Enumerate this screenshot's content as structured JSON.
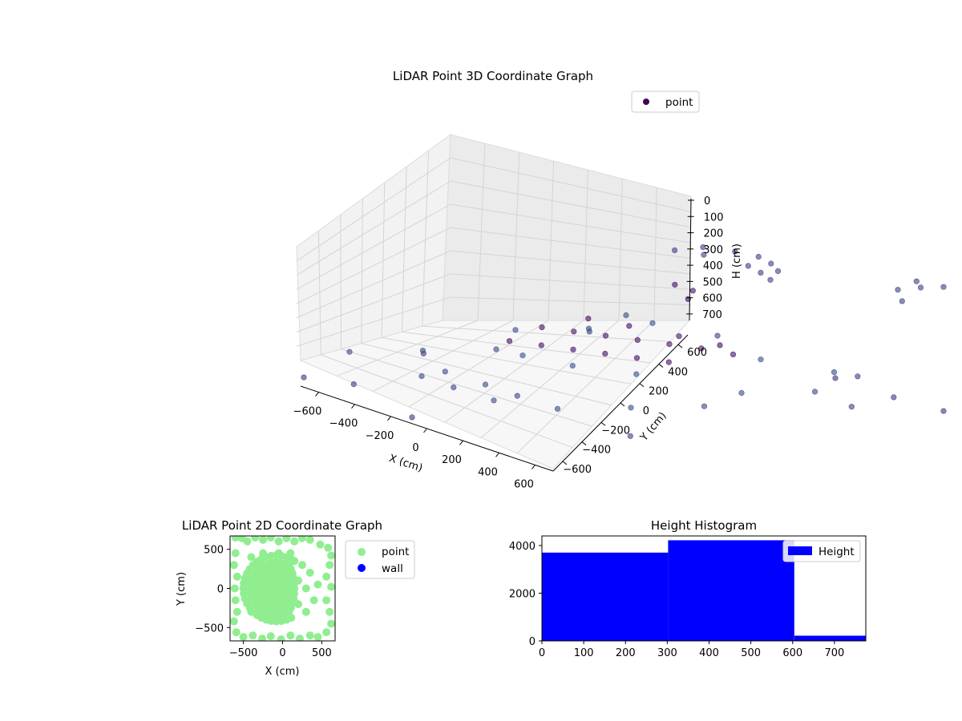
{
  "figure": {
    "panels": [
      "lidar-3d",
      "lidar-2d",
      "height-histogram"
    ]
  },
  "chart_data": [
    {
      "id": "lidar-3d",
      "type": "scatter",
      "projection": "3d",
      "title": "LiDAR Point 3D Coordinate Graph",
      "xlabel": "X (cm)",
      "ylabel": "Y (cm)",
      "zlabel": "H (cm)",
      "xlim": [
        -700,
        700
      ],
      "ylim": [
        -700,
        700
      ],
      "zlim": [
        0,
        770
      ],
      "x_ticks": [
        "−600",
        "−400",
        "−200",
        "0",
        "200",
        "400",
        "600"
      ],
      "y_ticks": [
        "−600",
        "−400",
        "−200",
        "0",
        "200",
        "400",
        "600"
      ],
      "z_ticks": [
        "0",
        "100",
        "200",
        "300",
        "400",
        "500",
        "600",
        "700"
      ],
      "z_inverted": true,
      "colormap": "viridis",
      "grid": true,
      "legend": {
        "placement": "upper right",
        "entries": [
          {
            "label": "point",
            "color": "#440154"
          }
        ]
      },
      "series": [
        {
          "name": "point",
          "note_points": "approximate sample of the dense point cloud",
          "points": [
            {
              "x": -250,
              "y": 450,
              "z": 60
            },
            {
              "x": -150,
              "y": 500,
              "z": 60
            },
            {
              "x": -50,
              "y": 520,
              "z": 60
            },
            {
              "x": 50,
              "y": 500,
              "z": 60
            },
            {
              "x": 150,
              "y": 460,
              "z": 60
            },
            {
              "x": -300,
              "y": 380,
              "z": 80
            },
            {
              "x": -200,
              "y": 420,
              "z": 80
            },
            {
              "x": 0,
              "y": 450,
              "z": 80
            },
            {
              "x": 100,
              "y": 430,
              "z": 80
            },
            {
              "x": 200,
              "y": 400,
              "z": 80
            },
            {
              "x": -100,
              "y": 250,
              "z": 180
            },
            {
              "x": 0,
              "y": 250,
              "z": 180
            },
            {
              "x": 50,
              "y": 200,
              "z": 200
            },
            {
              "x": -300,
              "y": -100,
              "z": 420
            },
            {
              "x": -200,
              "y": -50,
              "z": 420
            },
            {
              "x": -100,
              "y": 0,
              "z": 420
            },
            {
              "x": 0,
              "y": 50,
              "z": 420
            },
            {
              "x": 100,
              "y": 100,
              "z": 420
            },
            {
              "x": 200,
              "y": 150,
              "z": 420
            },
            {
              "x": 300,
              "y": 200,
              "z": 430
            },
            {
              "x": -250,
              "y": -250,
              "z": 450
            },
            {
              "x": -150,
              "y": -200,
              "z": 450
            },
            {
              "x": -50,
              "y": -150,
              "z": 450
            },
            {
              "x": 50,
              "y": -100,
              "z": 450
            },
            {
              "x": 150,
              "y": -50,
              "z": 450
            },
            {
              "x": 250,
              "y": 0,
              "z": 450
            },
            {
              "x": -350,
              "y": 100,
              "z": 430
            },
            {
              "x": -200,
              "y": 150,
              "z": 430
            },
            {
              "x": 0,
              "y": 200,
              "z": 430
            },
            {
              "x": 150,
              "y": 250,
              "z": 440
            },
            {
              "x": -100,
              "y": -300,
              "z": 470
            },
            {
              "x": 100,
              "y": -250,
              "z": 470
            },
            {
              "x": 300,
              "y": -150,
              "z": 470
            },
            {
              "x": -300,
              "y": 300,
              "z": 480
            },
            {
              "x": 300,
              "y": 300,
              "z": 480
            },
            {
              "x": -600,
              "y": -600,
              "z": 560
            },
            {
              "x": -500,
              "y": -400,
              "z": 560
            },
            {
              "x": -400,
              "y": -200,
              "z": 560
            },
            {
              "x": -600,
              "y": 0,
              "z": 560
            },
            {
              "x": -500,
              "y": 200,
              "z": 560
            },
            {
              "x": -600,
              "y": 400,
              "z": 560
            },
            {
              "x": 400,
              "y": -500,
              "z": 560
            },
            {
              "x": 500,
              "y": -300,
              "z": 560
            },
            {
              "x": 600,
              "y": -100,
              "z": 560
            },
            {
              "x": 500,
              "y": 100,
              "z": 560
            },
            {
              "x": 600,
              "y": 300,
              "z": 560
            },
            {
              "x": 400,
              "y": 500,
              "z": 560
            },
            {
              "x": -200,
              "y": -600,
              "z": 560
            },
            {
              "x": 0,
              "y": -500,
              "z": 560
            },
            {
              "x": 200,
              "y": -600,
              "z": 560
            },
            {
              "x": -300,
              "y": -450,
              "z": 600
            },
            {
              "x": -100,
              "y": -550,
              "z": 600
            },
            {
              "x": 100,
              "y": -450,
              "z": 600
            },
            {
              "x": -650,
              "y": -300,
              "z": 650
            },
            {
              "x": -650,
              "y": 300,
              "z": 650
            },
            {
              "x": 650,
              "y": -400,
              "z": 650
            },
            {
              "x": 650,
              "y": 400,
              "z": 650
            },
            {
              "x": -400,
              "y": 600,
              "z": 650
            },
            {
              "x": 300,
              "y": 650,
              "z": 650
            },
            {
              "x": -500,
              "y": -650,
              "z": 700
            },
            {
              "x": 500,
              "y": 650,
              "z": 700
            },
            {
              "x": -700,
              "y": -700,
              "z": 720
            },
            {
              "x": 700,
              "y": 700,
              "z": 720
            },
            {
              "x": -100,
              "y": -700,
              "z": 740
            },
            {
              "x": 100,
              "y": 700,
              "z": 740
            },
            {
              "x": 650,
              "y": 650,
              "z": 20
            },
            {
              "x": 600,
              "y": 600,
              "z": 40
            },
            {
              "x": 700,
              "y": 550,
              "z": 60
            },
            {
              "x": 550,
              "y": 700,
              "z": 30
            },
            {
              "x": 700,
              "y": 700,
              "z": 10
            }
          ]
        }
      ]
    },
    {
      "id": "lidar-2d",
      "type": "scatter",
      "title": "LiDAR Point 2D Coordinate Graph",
      "xlabel": "X (cm)",
      "ylabel": "Y (cm)",
      "xlim": [
        -670,
        670
      ],
      "ylim": [
        -670,
        670
      ],
      "x_ticks": [
        -500,
        0,
        500
      ],
      "y_ticks": [
        -500,
        0,
        500
      ],
      "legend": {
        "placement": "outside right",
        "entries": [
          {
            "label": "point",
            "color": "#90ee90"
          },
          {
            "label": "wall",
            "color": "#0000ff"
          }
        ]
      },
      "series": [
        {
          "name": "point",
          "color": "#90ee90",
          "note_points": "approximate sample of the dense point cloud",
          "points": [
            [
              -600,
              650
            ],
            [
              -520,
              640
            ],
            [
              -450,
              600
            ],
            [
              -350,
              650
            ],
            [
              -250,
              620
            ],
            [
              -150,
              650
            ],
            [
              -50,
              600
            ],
            [
              50,
              640
            ],
            [
              150,
              600
            ],
            [
              250,
              640
            ],
            [
              350,
              620
            ],
            [
              480,
              560
            ],
            [
              580,
              520
            ],
            [
              620,
              420
            ],
            [
              600,
              300
            ],
            [
              560,
              150
            ],
            [
              620,
              20
            ],
            [
              560,
              -150
            ],
            [
              600,
              -300
            ],
            [
              620,
              -450
            ],
            [
              560,
              -560
            ],
            [
              450,
              -620
            ],
            [
              350,
              -600
            ],
            [
              220,
              -640
            ],
            [
              100,
              -600
            ],
            [
              -20,
              -650
            ],
            [
              -150,
              -610
            ],
            [
              -260,
              -640
            ],
            [
              -380,
              -600
            ],
            [
              -500,
              -620
            ],
            [
              -590,
              -560
            ],
            [
              -620,
              -420
            ],
            [
              -580,
              -300
            ],
            [
              -600,
              -150
            ],
            [
              -610,
              0
            ],
            [
              -580,
              150
            ],
            [
              -620,
              300
            ],
            [
              -600,
              450
            ],
            [
              -400,
              400
            ],
            [
              -300,
              300
            ],
            [
              -200,
              200
            ],
            [
              -100,
              100
            ],
            [
              0,
              0
            ],
            [
              100,
              -100
            ],
            [
              200,
              -200
            ],
            [
              300,
              -300
            ],
            [
              -400,
              -300
            ],
            [
              -300,
              -200
            ],
            [
              -200,
              -100
            ],
            [
              -100,
              200
            ],
            [
              0,
              300
            ],
            [
              100,
              200
            ],
            [
              200,
              100
            ],
            [
              300,
              0
            ],
            [
              -350,
              0
            ],
            [
              -250,
              -350
            ],
            [
              -150,
              -400
            ],
            [
              50,
              -350
            ],
            [
              150,
              350
            ],
            [
              250,
              300
            ],
            [
              350,
              200
            ],
            [
              -450,
              100
            ],
            [
              -450,
              -150
            ],
            [
              400,
              -150
            ],
            [
              450,
              50
            ],
            [
              -50,
              450
            ],
            [
              -250,
              450
            ],
            [
              100,
              450
            ],
            [
              -100,
              -200
            ],
            [
              0,
              -150
            ]
          ]
        },
        {
          "name": "wall",
          "color": "#0000ff",
          "points": []
        }
      ]
    },
    {
      "id": "height-histogram",
      "type": "bar",
      "histogram": true,
      "title": "Height Histogram",
      "xlim": [
        0,
        775
      ],
      "ylim": [
        0,
        4400
      ],
      "x_ticks": [
        0,
        100,
        200,
        300,
        400,
        500,
        600,
        700
      ],
      "y_ticks": [
        0,
        2000,
        4000
      ],
      "legend": {
        "placement": "upper right",
        "entries": [
          {
            "label": "Height",
            "color": "#0000ff"
          }
        ]
      },
      "series": [
        {
          "name": "Height",
          "color": "#0000ff",
          "bins": [
            {
              "from": 0,
              "to": 302,
              "count": 3700
            },
            {
              "from": 302,
              "to": 604,
              "count": 4220
            },
            {
              "from": 604,
              "to": 775,
              "count": 220
            }
          ]
        }
      ]
    }
  ]
}
